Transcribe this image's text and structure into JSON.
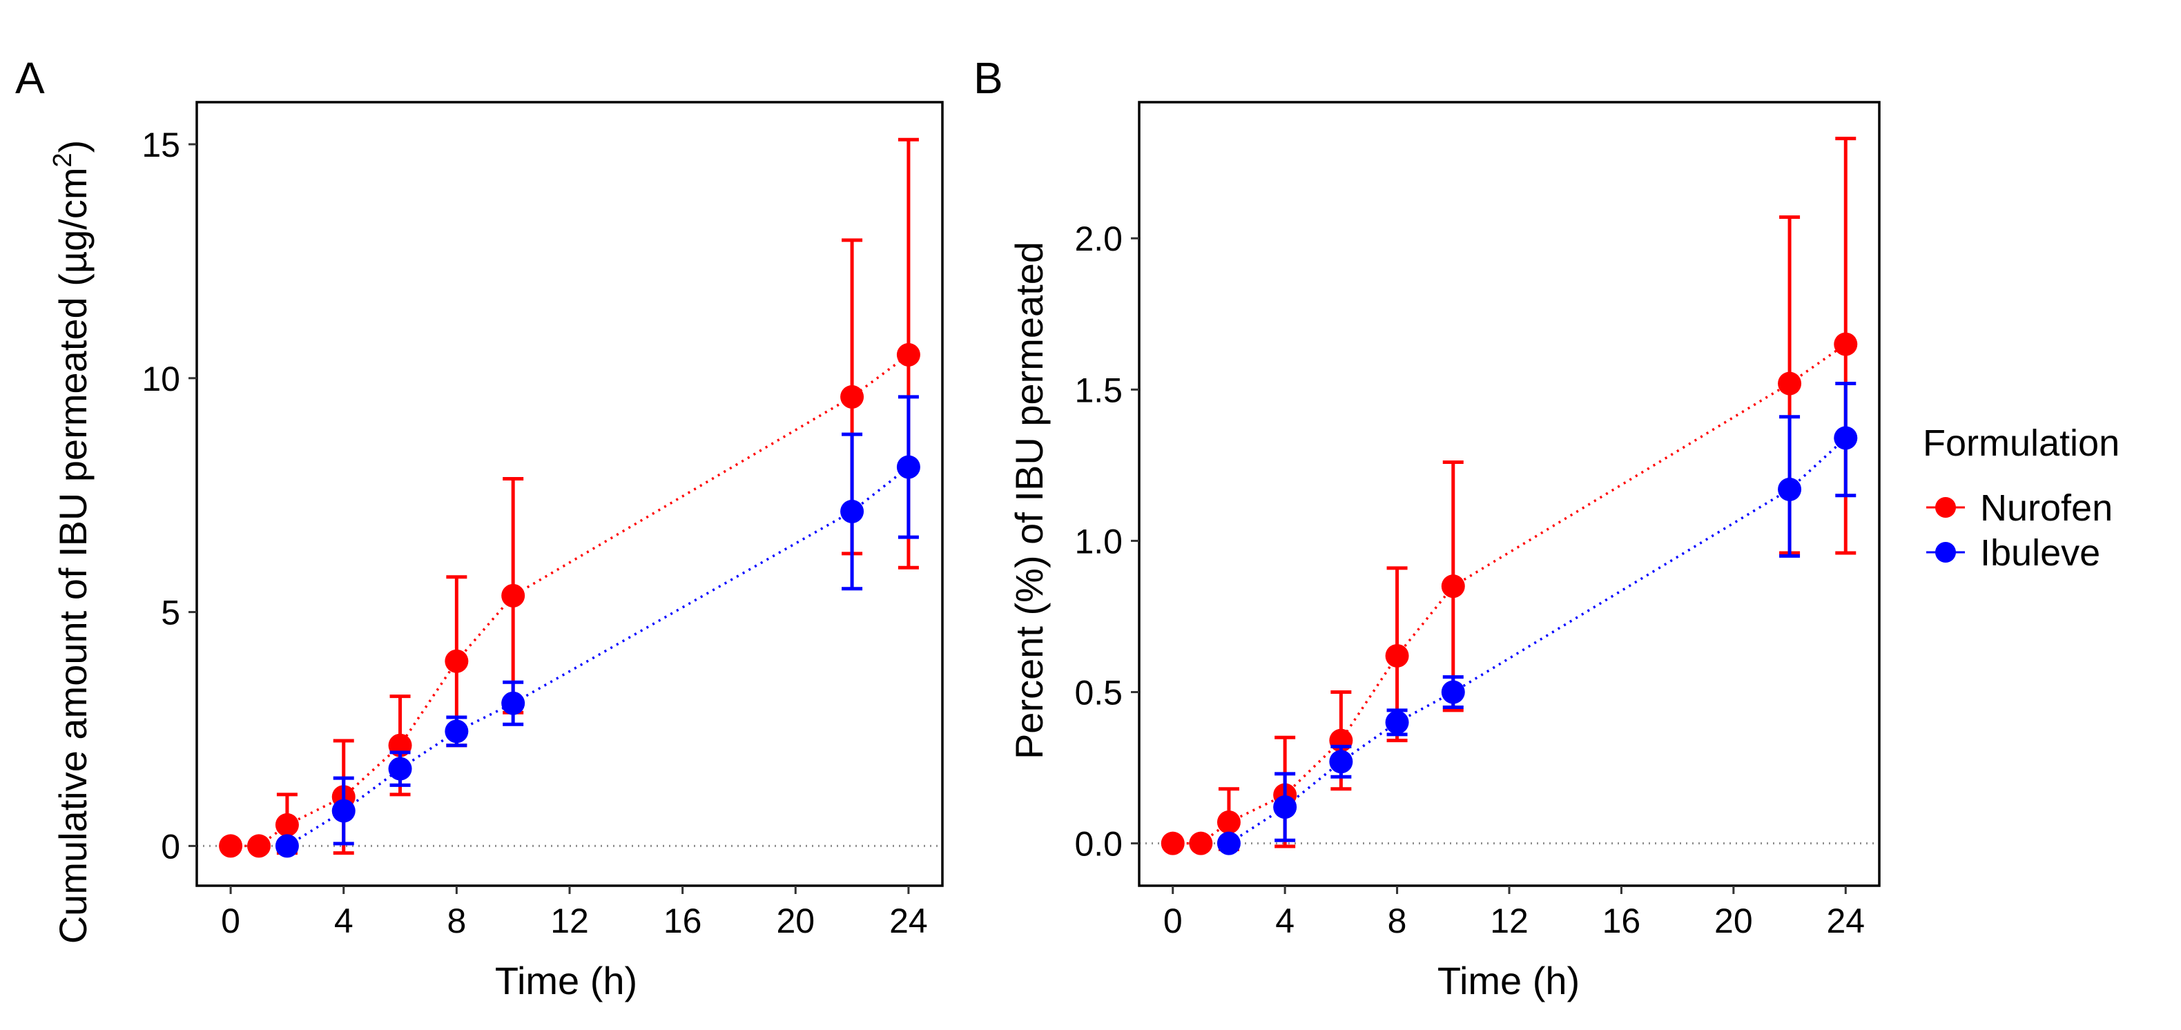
{
  "chart_data": [
    {
      "panel": "A",
      "type": "scatter",
      "xlabel": "Time (h)",
      "ylabel_prefix": "Cumulative amount of IBU permeated (µg/cm",
      "ylabel_sup": "2",
      "ylabel_suffix": ")",
      "xticks": [
        0,
        4,
        8,
        12,
        16,
        20,
        24
      ],
      "xtick_labels": [
        "0",
        "4",
        "8",
        "12",
        "16",
        "20",
        "24"
      ],
      "yticks": [
        0,
        5,
        10,
        15
      ],
      "ytick_labels": [
        "0",
        "5",
        "10",
        "15"
      ],
      "xlim": [
        -1.2,
        25.2
      ],
      "ylim": [
        -0.85,
        15.9
      ],
      "reference_line": 0,
      "series": [
        {
          "name": "Nurofen",
          "color": "#ff0000",
          "points": [
            {
              "x": 0,
              "y": 0,
              "lo": null,
              "hi": null
            },
            {
              "x": 1,
              "y": 0,
              "lo": null,
              "hi": null
            },
            {
              "x": 2,
              "y": 0.45,
              "lo": -0.15,
              "hi": 1.1
            },
            {
              "x": 4,
              "y": 1.05,
              "lo": -0.15,
              "hi": 2.25
            },
            {
              "x": 6,
              "y": 2.15,
              "lo": 1.1,
              "hi": 3.2
            },
            {
              "x": 8,
              "y": 3.95,
              "lo": 2.15,
              "hi": 5.75
            },
            {
              "x": 10,
              "y": 5.35,
              "lo": 2.85,
              "hi": 7.85
            },
            {
              "x": 22,
              "y": 9.6,
              "lo": 6.25,
              "hi": 12.95
            },
            {
              "x": 24,
              "y": 10.5,
              "lo": 5.95,
              "hi": 15.1
            }
          ]
        },
        {
          "name": "Ibuleve",
          "color": "#0000ff",
          "points": [
            {
              "x": 2,
              "y": 0,
              "lo": -0.05,
              "hi": 0.05
            },
            {
              "x": 4,
              "y": 0.75,
              "lo": 0.05,
              "hi": 1.45
            },
            {
              "x": 6,
              "y": 1.65,
              "lo": 1.3,
              "hi": 2.0
            },
            {
              "x": 8,
              "y": 2.45,
              "lo": 2.15,
              "hi": 2.75
            },
            {
              "x": 10,
              "y": 3.05,
              "lo": 2.6,
              "hi": 3.5
            },
            {
              "x": 22,
              "y": 7.15,
              "lo": 5.5,
              "hi": 8.8
            },
            {
              "x": 24,
              "y": 8.1,
              "lo": 6.6,
              "hi": 9.6
            }
          ]
        }
      ]
    },
    {
      "panel": "B",
      "type": "scatter",
      "xlabel": "Time (h)",
      "ylabel": "Percent (%) of IBU permeated",
      "xticks": [
        0,
        4,
        8,
        12,
        16,
        20,
        24
      ],
      "xtick_labels": [
        "0",
        "4",
        "8",
        "12",
        "16",
        "20",
        "24"
      ],
      "yticks": [
        0,
        0.5,
        1.0,
        1.5,
        2.0
      ],
      "ytick_labels": [
        "0.0",
        "0.5",
        "1.0",
        "1.5",
        "2.0"
      ],
      "xlim": [
        -1.2,
        25.2
      ],
      "ylim": [
        -0.14,
        2.45
      ],
      "reference_line": 0,
      "series": [
        {
          "name": "Nurofen",
          "color": "#ff0000",
          "points": [
            {
              "x": 0,
              "y": 0,
              "lo": null,
              "hi": null
            },
            {
              "x": 1,
              "y": 0,
              "lo": null,
              "hi": null
            },
            {
              "x": 2,
              "y": 0.07,
              "lo": -0.02,
              "hi": 0.18
            },
            {
              "x": 4,
              "y": 0.16,
              "lo": -0.01,
              "hi": 0.35
            },
            {
              "x": 6,
              "y": 0.34,
              "lo": 0.18,
              "hi": 0.5
            },
            {
              "x": 8,
              "y": 0.62,
              "lo": 0.34,
              "hi": 0.91
            },
            {
              "x": 10,
              "y": 0.85,
              "lo": 0.44,
              "hi": 1.26
            },
            {
              "x": 22,
              "y": 1.52,
              "lo": 0.96,
              "hi": 2.07
            },
            {
              "x": 24,
              "y": 1.65,
              "lo": 0.96,
              "hi": 2.33
            }
          ]
        },
        {
          "name": "Ibuleve",
          "color": "#0000ff",
          "points": [
            {
              "x": 2,
              "y": 0,
              "lo": -0.01,
              "hi": 0.01
            },
            {
              "x": 4,
              "y": 0.12,
              "lo": 0.01,
              "hi": 0.23
            },
            {
              "x": 6,
              "y": 0.27,
              "lo": 0.22,
              "hi": 0.32
            },
            {
              "x": 8,
              "y": 0.4,
              "lo": 0.36,
              "hi": 0.44
            },
            {
              "x": 10,
              "y": 0.5,
              "lo": 0.45,
              "hi": 0.55
            },
            {
              "x": 22,
              "y": 1.17,
              "lo": 0.95,
              "hi": 1.41
            },
            {
              "x": 24,
              "y": 1.34,
              "lo": 1.15,
              "hi": 1.52
            }
          ]
        }
      ]
    }
  ],
  "legend": {
    "title": "Formulation",
    "items": [
      {
        "label": "Nurofen",
        "color": "#ff0000"
      },
      {
        "label": "Ibuleve",
        "color": "#0000ff"
      }
    ]
  }
}
